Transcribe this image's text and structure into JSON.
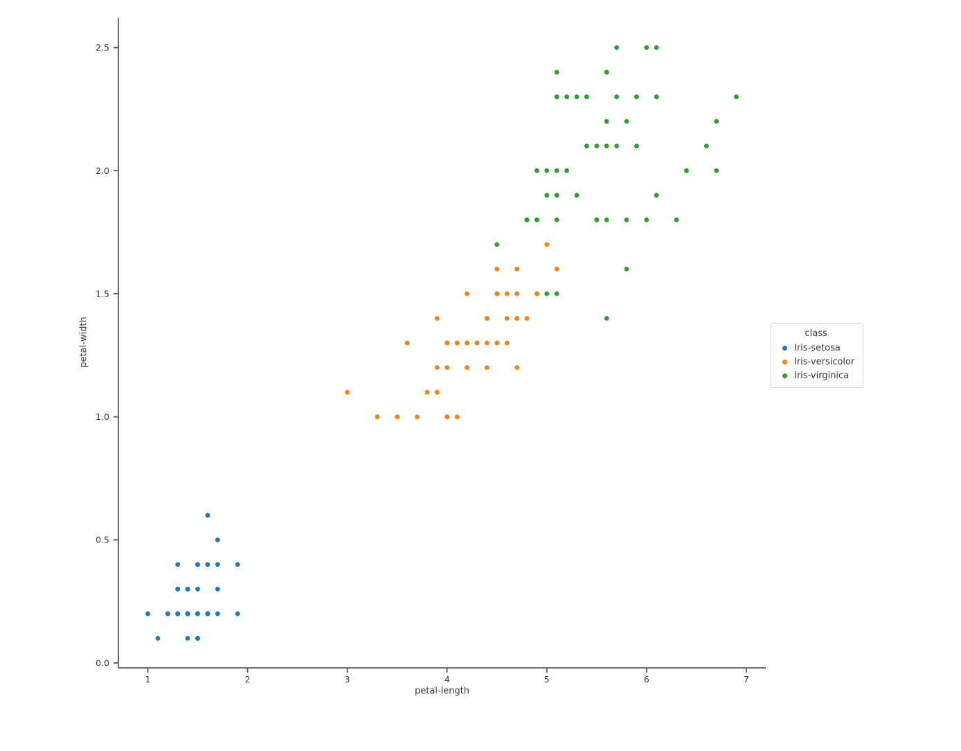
{
  "figure": {
    "background_color": "#ffffff",
    "spine_color": "#5a5a5a",
    "tick_label_color": "#3a3a3a",
    "axis_label_color": "#3a3a3a"
  },
  "chart_data": {
    "type": "scatter",
    "title": "",
    "xlabel": "petal-length",
    "ylabel": "petal-width",
    "xlim": [
      0.705,
      7.195
    ],
    "ylim": [
      -0.02,
      2.62
    ],
    "xticks": [
      1,
      2,
      3,
      4,
      5,
      6,
      7
    ],
    "xtick_labels": [
      "1",
      "2",
      "3",
      "4",
      "5",
      "6",
      "7"
    ],
    "yticks": [
      0.0,
      0.5,
      1.0,
      1.5,
      2.0,
      2.5
    ],
    "ytick_labels": [
      "0.0",
      "0.5",
      "1.0",
      "1.5",
      "2.0",
      "2.5"
    ],
    "grid": false,
    "spines": [
      "left",
      "bottom"
    ],
    "marker": {
      "shape": "circle",
      "radius_px": 3.4
    },
    "legend": {
      "title": "class",
      "position": "outside-right"
    },
    "series": [
      {
        "name": "Iris-setosa",
        "color": "#1f77b4",
        "points": [
          [
            1.4,
            0.2
          ],
          [
            1.4,
            0.2
          ],
          [
            1.3,
            0.2
          ],
          [
            1.5,
            0.2
          ],
          [
            1.4,
            0.2
          ],
          [
            1.7,
            0.4
          ],
          [
            1.4,
            0.3
          ],
          [
            1.5,
            0.2
          ],
          [
            1.4,
            0.2
          ],
          [
            1.5,
            0.1
          ],
          [
            1.5,
            0.2
          ],
          [
            1.6,
            0.2
          ],
          [
            1.4,
            0.1
          ],
          [
            1.1,
            0.1
          ],
          [
            1.2,
            0.2
          ],
          [
            1.5,
            0.4
          ],
          [
            1.3,
            0.4
          ],
          [
            1.4,
            0.3
          ],
          [
            1.7,
            0.3
          ],
          [
            1.5,
            0.3
          ],
          [
            1.7,
            0.2
          ],
          [
            1.5,
            0.4
          ],
          [
            1.0,
            0.2
          ],
          [
            1.7,
            0.5
          ],
          [
            1.9,
            0.2
          ],
          [
            1.6,
            0.2
          ],
          [
            1.6,
            0.4
          ],
          [
            1.5,
            0.2
          ],
          [
            1.4,
            0.2
          ],
          [
            1.6,
            0.2
          ],
          [
            1.6,
            0.2
          ],
          [
            1.5,
            0.4
          ],
          [
            1.5,
            0.1
          ],
          [
            1.4,
            0.2
          ],
          [
            1.5,
            0.1
          ],
          [
            1.2,
            0.2
          ],
          [
            1.3,
            0.2
          ],
          [
            1.5,
            0.1
          ],
          [
            1.3,
            0.2
          ],
          [
            1.5,
            0.2
          ],
          [
            1.3,
            0.3
          ],
          [
            1.3,
            0.3
          ],
          [
            1.3,
            0.2
          ],
          [
            1.6,
            0.6
          ],
          [
            1.9,
            0.4
          ],
          [
            1.4,
            0.3
          ],
          [
            1.6,
            0.2
          ],
          [
            1.4,
            0.2
          ],
          [
            1.5,
            0.2
          ],
          [
            1.4,
            0.2
          ]
        ]
      },
      {
        "name": "Iris-versicolor",
        "color": "#ff7f0e",
        "points": [
          [
            4.7,
            1.4
          ],
          [
            4.5,
            1.5
          ],
          [
            4.9,
            1.5
          ],
          [
            4.0,
            1.3
          ],
          [
            4.6,
            1.5
          ],
          [
            4.5,
            1.3
          ],
          [
            4.7,
            1.6
          ],
          [
            3.3,
            1.0
          ],
          [
            4.6,
            1.3
          ],
          [
            3.9,
            1.4
          ],
          [
            3.5,
            1.0
          ],
          [
            4.2,
            1.5
          ],
          [
            4.0,
            1.0
          ],
          [
            4.7,
            1.4
          ],
          [
            3.6,
            1.3
          ],
          [
            4.4,
            1.4
          ],
          [
            4.5,
            1.5
          ],
          [
            4.1,
            1.0
          ],
          [
            4.5,
            1.5
          ],
          [
            3.9,
            1.1
          ],
          [
            4.8,
            1.8
          ],
          [
            4.0,
            1.3
          ],
          [
            4.9,
            1.5
          ],
          [
            4.7,
            1.2
          ],
          [
            4.3,
            1.3
          ],
          [
            4.4,
            1.4
          ],
          [
            4.8,
            1.4
          ],
          [
            5.0,
            1.7
          ],
          [
            4.5,
            1.5
          ],
          [
            3.5,
            1.0
          ],
          [
            3.8,
            1.1
          ],
          [
            3.7,
            1.0
          ],
          [
            3.9,
            1.2
          ],
          [
            5.1,
            1.6
          ],
          [
            4.5,
            1.5
          ],
          [
            4.5,
            1.6
          ],
          [
            4.7,
            1.5
          ],
          [
            4.4,
            1.3
          ],
          [
            4.1,
            1.3
          ],
          [
            4.0,
            1.3
          ],
          [
            4.4,
            1.2
          ],
          [
            4.6,
            1.4
          ],
          [
            4.0,
            1.2
          ],
          [
            3.3,
            1.0
          ],
          [
            4.2,
            1.3
          ],
          [
            4.2,
            1.2
          ],
          [
            4.2,
            1.3
          ],
          [
            4.3,
            1.3
          ],
          [
            3.0,
            1.1
          ],
          [
            4.1,
            1.3
          ]
        ]
      },
      {
        "name": "Iris-virginica",
        "color": "#2ca02c",
        "points": [
          [
            6.0,
            2.5
          ],
          [
            5.1,
            1.9
          ],
          [
            5.9,
            2.1
          ],
          [
            5.6,
            1.8
          ],
          [
            5.8,
            2.2
          ],
          [
            6.6,
            2.1
          ],
          [
            4.5,
            1.7
          ],
          [
            6.3,
            1.8
          ],
          [
            5.8,
            1.8
          ],
          [
            6.1,
            2.5
          ],
          [
            5.1,
            2.0
          ],
          [
            5.3,
            1.9
          ],
          [
            5.5,
            2.1
          ],
          [
            5.0,
            2.0
          ],
          [
            5.1,
            2.4
          ],
          [
            5.3,
            2.3
          ],
          [
            5.5,
            1.8
          ],
          [
            6.7,
            2.2
          ],
          [
            6.9,
            2.3
          ],
          [
            5.0,
            1.5
          ],
          [
            5.7,
            2.3
          ],
          [
            4.9,
            2.0
          ],
          [
            6.7,
            2.0
          ],
          [
            4.9,
            1.8
          ],
          [
            5.7,
            2.1
          ],
          [
            6.0,
            1.8
          ],
          [
            4.8,
            1.8
          ],
          [
            4.9,
            1.8
          ],
          [
            5.6,
            2.1
          ],
          [
            5.8,
            1.6
          ],
          [
            6.1,
            1.9
          ],
          [
            6.4,
            2.0
          ],
          [
            5.6,
            2.2
          ],
          [
            5.1,
            1.5
          ],
          [
            5.6,
            1.4
          ],
          [
            6.1,
            2.3
          ],
          [
            5.6,
            2.4
          ],
          [
            5.5,
            1.8
          ],
          [
            4.8,
            1.8
          ],
          [
            5.4,
            2.1
          ],
          [
            5.6,
            2.4
          ],
          [
            5.1,
            2.3
          ],
          [
            5.1,
            1.9
          ],
          [
            5.9,
            2.3
          ],
          [
            5.7,
            2.5
          ],
          [
            5.2,
            2.3
          ],
          [
            5.0,
            1.9
          ],
          [
            5.2,
            2.0
          ],
          [
            5.4,
            2.3
          ],
          [
            5.1,
            1.8
          ]
        ]
      }
    ]
  }
}
